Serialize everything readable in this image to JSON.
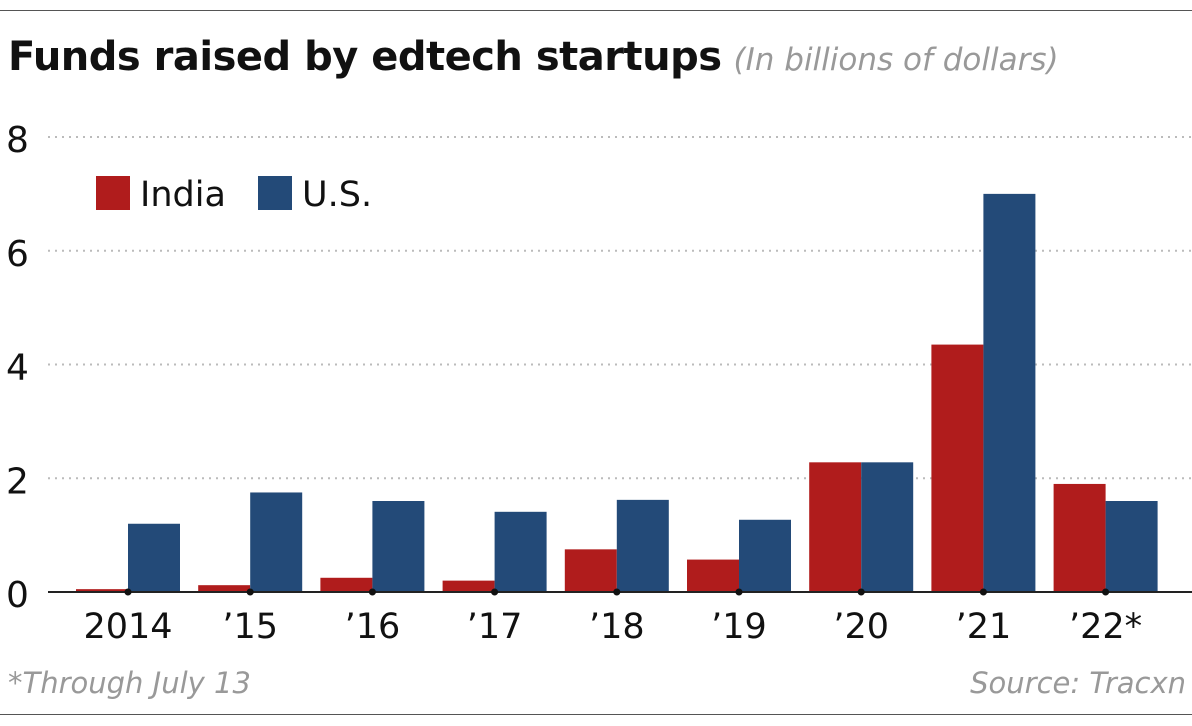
{
  "header": {
    "title": "Funds raised by edtech startups",
    "subtitle": "(In billions of dollars)"
  },
  "footer": {
    "note": "*Through July 13",
    "source": "Source: Tracxn"
  },
  "colors": {
    "india": "#b01c1c",
    "us": "#234a78",
    "grid": "#bbbbbb",
    "axis": "#222222"
  },
  "chart_data": {
    "type": "bar",
    "title": "Funds raised by edtech startups",
    "subtitle": "(In billions of dollars)",
    "categories": [
      "2014",
      "’15",
      "’16",
      "’17",
      "’18",
      "’19",
      "’20",
      "’21",
      "’22*"
    ],
    "series": [
      {
        "name": "India",
        "color": "#b01c1c",
        "values": [
          0.05,
          0.12,
          0.25,
          0.2,
          0.75,
          0.57,
          2.28,
          4.35,
          1.9
        ]
      },
      {
        "name": "U.S.",
        "color": "#234a78",
        "values": [
          1.2,
          1.75,
          1.6,
          1.41,
          1.62,
          1.27,
          2.28,
          7.0,
          1.6
        ]
      }
    ],
    "ylim": [
      0,
      8
    ],
    "yticks": [
      "0",
      "2",
      "4",
      "6",
      "8"
    ],
    "grid": true,
    "legend_position": "top-left"
  }
}
